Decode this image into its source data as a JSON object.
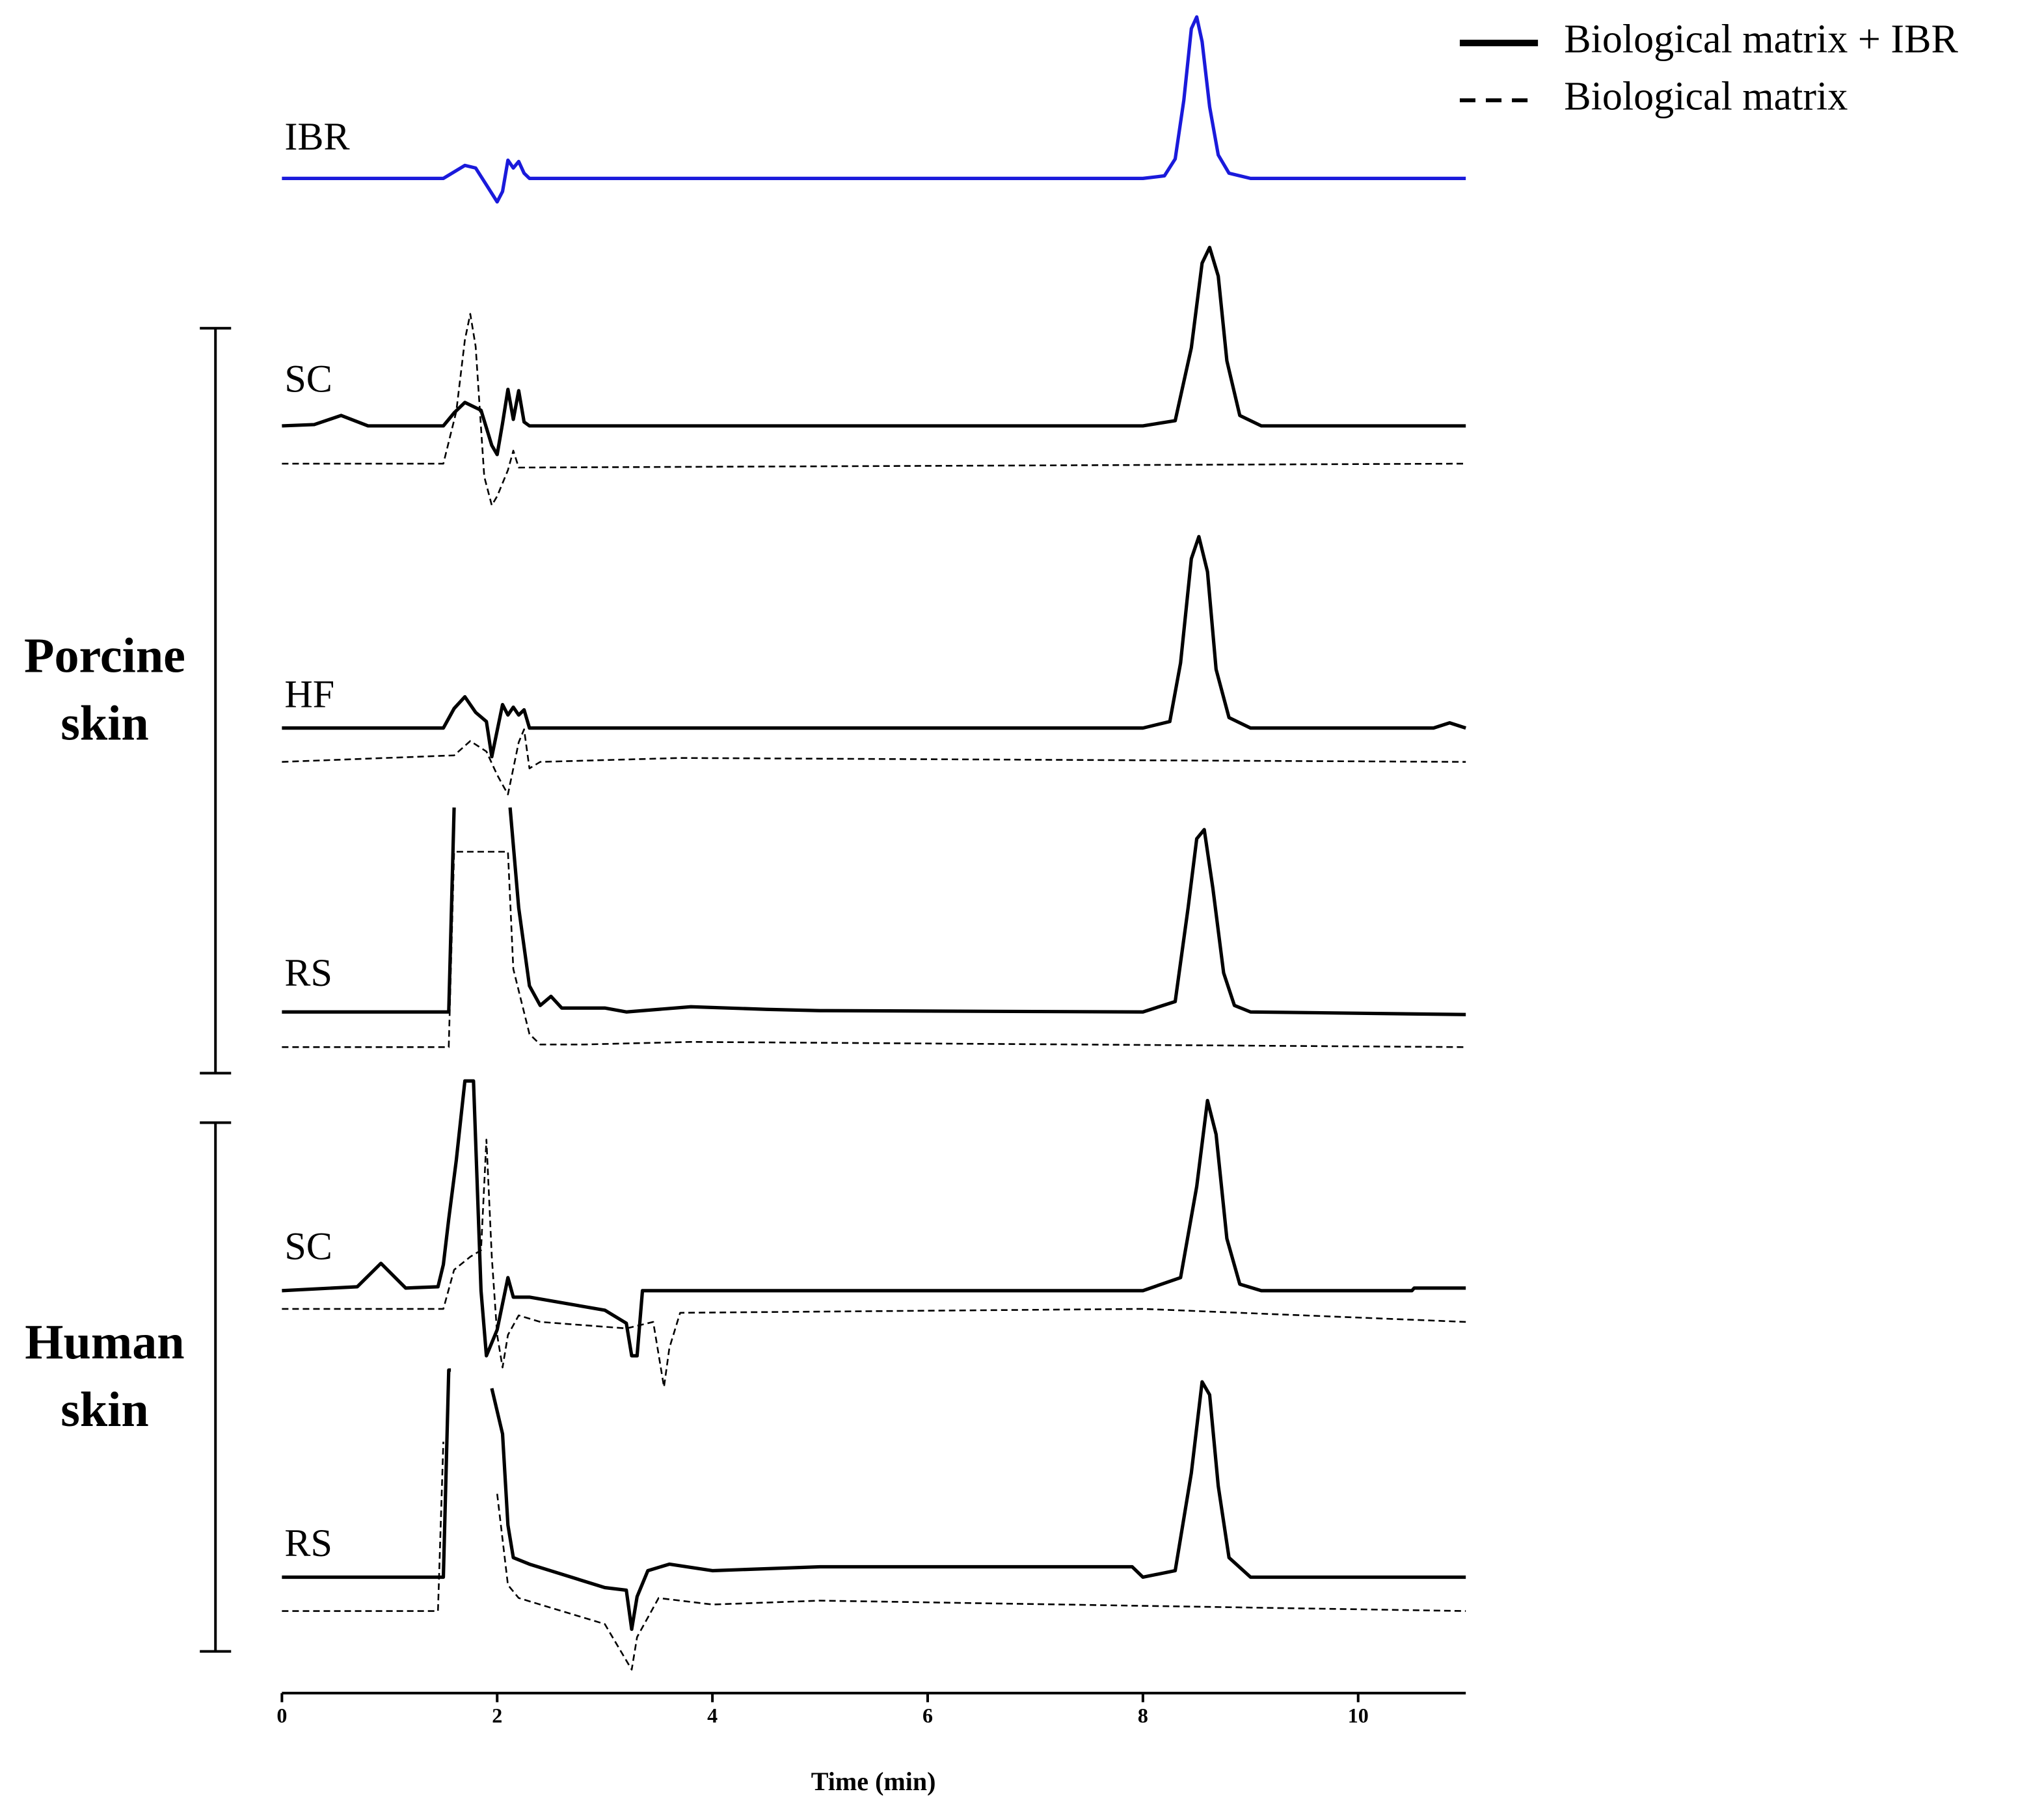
{
  "chart_data": {
    "type": "line",
    "xlabel": "Time (min)",
    "xlim": [
      0,
      11
    ],
    "xticks": [
      0,
      2,
      4,
      6,
      8,
      10
    ],
    "legend": [
      {
        "name": "Biological matrix + IBR",
        "dash": false
      },
      {
        "name": "Biological matrix",
        "dash": true
      }
    ],
    "panels": [
      {
        "label": "IBR",
        "series": [
          {
            "color": "#1a1adb",
            "dash": false,
            "x": [
              0,
              1.5,
              1.6,
              1.7,
              1.8,
              1.9,
              2.0,
              2.05,
              2.1,
              2.15,
              2.2,
              2.25,
              2.3,
              2.4,
              8.0,
              8.2,
              8.3,
              8.38,
              8.45,
              8.5,
              8.55,
              8.62,
              8.7,
              8.8,
              9.0,
              11
            ],
            "values": [
              0,
              0,
              5,
              10,
              8,
              -5,
              -18,
              -10,
              14,
              8,
              13,
              4,
              0,
              0,
              0,
              2,
              15,
              60,
              115,
              124,
              105,
              55,
              18,
              4,
              0,
              0
            ]
          }
        ]
      }
    ],
    "groups": [
      {
        "label": "Porcine skin",
        "panels": [
          {
            "label": "SC",
            "series": [
              {
                "color": "#000000",
                "dash": false,
                "x": [
                  0,
                  0.3,
                  0.55,
                  0.8,
                  1.5,
                  1.6,
                  1.7,
                  1.85,
                  1.95,
                  2.0,
                  2.05,
                  2.1,
                  2.15,
                  2.2,
                  2.25,
                  2.3,
                  8.0,
                  8.3,
                  8.45,
                  8.55,
                  8.62,
                  8.7,
                  8.78,
                  8.9,
                  9.1,
                  11
                ],
                "values": [
                  0,
                  1,
                  8,
                  0,
                  0,
                  10,
                  18,
                  12,
                  -15,
                  -22,
                  2,
                  28,
                  5,
                  27,
                  3,
                  0,
                  0,
                  4,
                  60,
                  125,
                  137,
                  115,
                  50,
                  8,
                  0,
                  0
                ]
              },
              {
                "color": "#000000",
                "dash": true,
                "x": [
                  0,
                  1.5,
                  1.62,
                  1.7,
                  1.75,
                  1.8,
                  1.88,
                  1.95,
                  2.0,
                  2.1,
                  2.15,
                  2.2,
                  11
                ],
                "values": [
                  0,
                  0,
                  40,
                  95,
                  115,
                  90,
                  -10,
                  -32,
                  -25,
                  -5,
                  10,
                  -3,
                  0
                ]
              }
            ]
          },
          {
            "label": "HF",
            "series": [
              {
                "color": "#000000",
                "dash": false,
                "x": [
                  0,
                  1.5,
                  1.6,
                  1.7,
                  1.8,
                  1.9,
                  1.95,
                  2.05,
                  2.1,
                  2.15,
                  2.2,
                  2.25,
                  2.3,
                  8.0,
                  8.25,
                  8.35,
                  8.45,
                  8.52,
                  8.6,
                  8.68,
                  8.8,
                  9.0,
                  10.7,
                  10.85,
                  11
                ],
                "values": [
                  0,
                  0,
                  15,
                  24,
                  12,
                  5,
                  -22,
                  18,
                  10,
                  16,
                  10,
                  14,
                  0,
                  0,
                  5,
                  50,
                  130,
                  147,
                  120,
                  45,
                  8,
                  0,
                  0,
                  4,
                  0
                ]
              },
              {
                "color": "#000000",
                "dash": true,
                "x": [
                  0,
                  1.6,
                  1.75,
                  1.9,
                  2.0,
                  2.1,
                  2.2,
                  2.25,
                  2.3,
                  2.4,
                  3.7,
                  11
                ],
                "values": [
                  0,
                  5,
                  16,
                  8,
                  -10,
                  -25,
                  15,
                  25,
                  -5,
                  0,
                  3,
                  0
                ]
              }
            ]
          },
          {
            "label": "RS",
            "series": [
              {
                "color": "#000000",
                "dash": false,
                "x": [
                  0,
                  1.55,
                  1.6,
                  1.9,
                  2.12,
                  2.2,
                  2.3,
                  2.4,
                  2.5,
                  2.6,
                  3.0,
                  3.2,
                  3.8,
                  4.5,
                  5,
                  8.0,
                  8.3,
                  8.42,
                  8.5,
                  8.57,
                  8.65,
                  8.75,
                  8.85,
                  9.0,
                  11
                ],
                "values": [
                  0,
                  0,
                  157,
                  null,
                  157,
                  80,
                  20,
                  5,
                  12,
                  3,
                  3,
                  0,
                  4,
                  2,
                  1,
                  0,
                  8,
                  80,
                  133,
                  140,
                  95,
                  30,
                  5,
                  0,
                  -2
                ]
              },
              {
                "color": "#000000",
                "dash": true,
                "x": [
                  0,
                  1.55,
                  1.6,
                  2.1,
                  2.15,
                  2.3,
                  2.4,
                  2.8,
                  3.8,
                  11
                ],
                "values": [
                  0,
                  0,
                  150,
                  150,
                  60,
                  10,
                  2,
                  2,
                  4,
                  0
                ]
              }
            ]
          }
        ]
      },
      {
        "label": "Human skin",
        "panels": [
          {
            "label": "SC",
            "series": [
              {
                "color": "#000000",
                "dash": false,
                "x": [
                  0,
                  0.7,
                  0.92,
                  1.15,
                  1.45,
                  1.5,
                  1.55,
                  1.62,
                  1.7,
                  1.78,
                  1.85,
                  1.9,
                  2.0,
                  2.05,
                  2.1,
                  2.15,
                  2.3,
                  3.0,
                  3.2,
                  3.25,
                  3.3,
                  3.35,
                  8.0,
                  8.35,
                  8.5,
                  8.6,
                  8.68,
                  8.78,
                  8.9,
                  9.1,
                  10.5,
                  10.52,
                  11
                ],
                "values": [
                  0,
                  3,
                  21,
                  2,
                  3,
                  20,
                  55,
                  100,
                  161,
                  161,
                  0,
                  -50,
                  -30,
                  -10,
                  10,
                  -5,
                  -5,
                  -15,
                  -25,
                  -50,
                  -50,
                  0,
                  0,
                  10,
                  80,
                  146,
                  120,
                  40,
                  5,
                  0,
                  0,
                  2,
                  2
                ]
              },
              {
                "color": "#000000",
                "dash": true,
                "x": [
                  0,
                  1.5,
                  1.6,
                  1.75,
                  1.85,
                  1.9,
                  1.95,
                  2.0,
                  2.05,
                  2.1,
                  2.2,
                  2.4,
                  3.2,
                  3.45,
                  3.55,
                  3.6,
                  3.7,
                  8,
                  11
                ],
                "values": [
                  0,
                  0,
                  30,
                  40,
                  45,
                  130,
                  40,
                  -20,
                  -45,
                  -20,
                  -5,
                  -10,
                  -15,
                  -10,
                  -60,
                  -30,
                  -3,
                  0,
                  -10
                ]
              }
            ]
          },
          {
            "label": "RS",
            "series": [
              {
                "color": "#000000",
                "dash": false,
                "x": [
                  0,
                  1.5,
                  1.55,
                  1.57,
                  1.9,
                  1.95,
                  2.05,
                  2.1,
                  2.15,
                  2.3,
                  3.0,
                  3.2,
                  3.25,
                  3.3,
                  3.4,
                  3.6,
                  4.0,
                  5,
                  7.9,
                  8.0,
                  8.3,
                  8.45,
                  8.55,
                  8.62,
                  8.7,
                  8.8,
                  9.0,
                  11
                ],
                "values": [
                  0,
                  0,
                  159,
                  159,
                  null,
                  145,
                  110,
                  40,
                  15,
                  10,
                  -8,
                  -10,
                  -40,
                  -15,
                  5,
                  10,
                  5,
                  8,
                  8,
                  0,
                  5,
                  80,
                  150,
                  140,
                  70,
                  15,
                  0,
                  0
                ]
              },
              {
                "color": "#000000",
                "dash": true,
                "x": [
                  0,
                  1.45,
                  1.5,
                  1.55,
                  2.0,
                  2.1,
                  2.2,
                  3.0,
                  3.25,
                  3.3,
                  3.5,
                  4.0,
                  5,
                  11
                ],
                "values": [
                  0,
                  0,
                  130,
                  null,
                  90,
                  20,
                  10,
                  -10,
                  -45,
                  -20,
                  10,
                  5,
                  8,
                  0
                ]
              }
            ]
          }
        ]
      }
    ]
  }
}
